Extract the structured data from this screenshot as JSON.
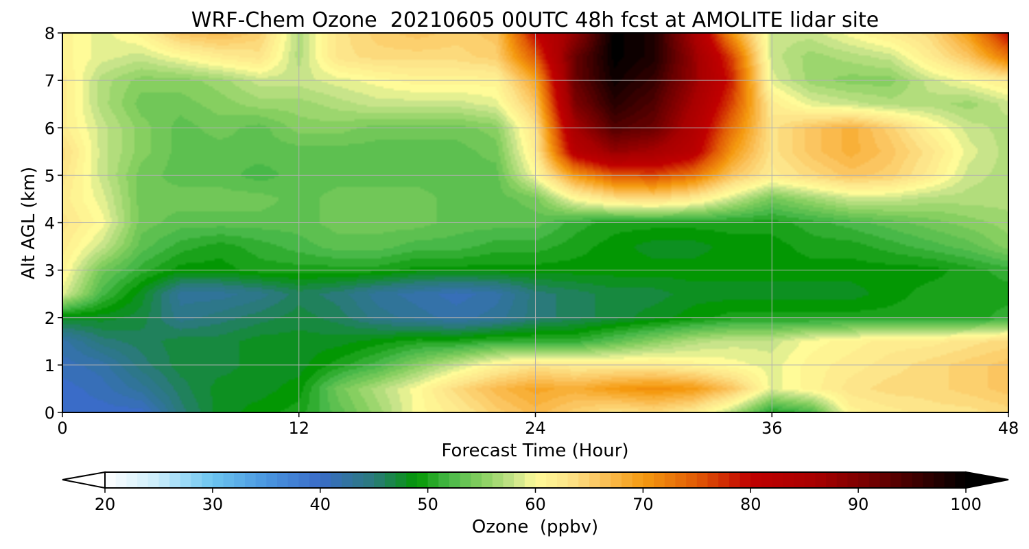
{
  "chart_data": {
    "type": "heatmap",
    "title": "WRF-Chem Ozone  20210605 00UTC 48h fcst at AMOLITE lidar site",
    "xlabel": "Forecast Time (Hour)",
    "ylabel": "Alt AGL (km)",
    "xlim": [
      0,
      48
    ],
    "ylim": [
      0,
      8
    ],
    "xticks": [
      0,
      12,
      24,
      36,
      48
    ],
    "yticks": [
      0,
      1,
      2,
      3,
      4,
      5,
      6,
      7,
      8
    ],
    "grid": true,
    "x": [
      0,
      2,
      4,
      6,
      8,
      10,
      12,
      14,
      16,
      18,
      20,
      22,
      24,
      26,
      28,
      30,
      32,
      34,
      36,
      38,
      40,
      42,
      44,
      46,
      48
    ],
    "y": [
      0,
      0.5,
      1,
      1.5,
      2,
      2.5,
      3,
      3.5,
      4,
      4.5,
      5,
      5.5,
      6,
      6.5,
      7,
      7.5,
      8
    ],
    "values": [
      [
        40,
        40,
        40,
        45,
        48,
        49,
        50,
        53,
        56,
        60,
        62,
        65,
        67,
        65,
        63,
        64,
        62,
        57,
        50,
        52,
        61,
        62,
        63,
        63,
        64
      ],
      [
        40,
        41,
        43,
        46,
        48,
        48,
        49,
        54,
        57,
        60,
        64,
        67,
        69,
        68,
        70,
        71,
        70,
        66,
        59,
        61,
        63,
        64,
        64,
        65,
        66
      ],
      [
        41,
        42,
        45,
        47,
        47,
        48,
        48,
        50,
        52,
        55,
        58,
        61,
        63,
        62,
        62,
        62,
        61,
        60,
        59,
        61,
        62,
        63,
        64,
        65,
        66
      ],
      [
        42,
        45,
        46,
        47,
        47,
        48,
        48,
        48,
        49,
        50,
        50,
        51,
        51,
        51,
        53,
        55,
        57,
        58,
        58,
        60,
        61,
        62,
        62,
        63,
        64
      ],
      [
        48,
        48,
        47,
        44,
        45,
        46,
        47,
        46,
        44,
        43,
        42,
        43,
        45,
        46,
        47,
        48,
        49,
        50,
        50,
        50,
        50,
        50,
        50,
        50,
        51
      ],
      [
        59,
        52,
        48,
        43,
        43,
        44,
        46,
        45,
        43,
        42,
        41,
        42,
        45,
        46,
        47,
        47,
        48,
        48,
        48,
        48,
        48,
        49,
        50,
        50,
        50
      ],
      [
        61,
        54,
        51,
        49,
        49,
        50,
        50,
        50,
        50,
        49,
        49,
        49,
        49,
        49,
        49,
        49,
        49,
        49,
        49,
        49,
        49,
        49,
        49,
        50,
        51
      ],
      [
        62,
        58,
        53,
        51,
        50,
        51,
        52,
        53,
        53,
        52,
        52,
        51,
        51,
        50,
        49,
        48,
        48,
        49,
        49,
        50,
        50,
        51,
        52,
        53,
        55
      ],
      [
        63,
        60,
        54,
        53,
        53,
        53,
        53,
        54,
        54,
        54,
        53,
        53,
        53,
        51,
        50,
        50,
        50,
        50,
        50,
        51,
        52,
        53,
        54,
        55,
        56
      ],
      [
        62,
        59,
        54,
        54,
        54,
        54,
        53,
        54,
        54,
        54,
        53,
        53,
        54,
        60,
        63,
        64,
        62,
        58,
        54,
        56,
        58,
        58,
        57,
        57,
        57
      ],
      [
        63,
        58,
        54,
        53,
        53,
        52,
        53,
        53,
        53,
        53,
        53,
        53,
        60,
        70,
        75,
        76,
        73,
        66,
        62,
        64,
        66,
        65,
        62,
        58,
        57
      ],
      [
        64,
        58,
        55,
        53,
        53,
        53,
        53,
        53,
        53,
        53,
        53,
        54,
        62,
        82,
        88,
        86,
        82,
        70,
        63,
        66,
        68,
        66,
        63,
        59,
        57
      ],
      [
        62,
        58,
        55,
        53,
        54,
        53,
        55,
        55,
        54,
        54,
        54,
        55,
        63,
        86,
        94,
        92,
        84,
        73,
        63,
        66,
        68,
        65,
        61,
        58,
        57
      ],
      [
        62,
        57,
        54,
        54,
        55,
        56,
        56,
        57,
        58,
        58,
        58,
        59,
        66,
        90,
        97,
        94,
        86,
        76,
        62,
        59,
        58,
        57,
        57,
        56,
        58
      ],
      [
        62,
        57,
        55,
        55,
        56,
        58,
        58,
        59,
        60,
        61,
        61,
        61,
        69,
        92,
        99,
        96,
        88,
        78,
        59,
        56,
        55,
        55,
        58,
        60,
        62
      ],
      [
        61,
        59,
        58,
        60,
        62,
        63,
        57,
        63,
        64,
        64,
        64,
        65,
        75,
        92,
        100,
        98,
        88,
        76,
        58,
        56,
        57,
        58,
        62,
        66,
        73
      ],
      [
        61,
        59,
        61,
        66,
        67,
        65,
        57,
        63,
        65,
        66,
        65,
        66,
        80,
        88,
        100,
        98,
        86,
        70,
        58,
        58,
        60,
        62,
        64,
        70,
        80
      ]
    ],
    "colorbar": {
      "label": "Ozone  (ppbv)",
      "min": 20,
      "max": 100,
      "ticks": [
        20,
        30,
        40,
        50,
        60,
        70,
        80,
        90,
        100
      ],
      "extend": "both",
      "stops": [
        {
          "v": 20,
          "c": "#ffffff"
        },
        {
          "v": 25,
          "c": "#c8ecfb"
        },
        {
          "v": 30,
          "c": "#6cc5f0"
        },
        {
          "v": 35,
          "c": "#4a96e0"
        },
        {
          "v": 40,
          "c": "#3a6cc8"
        },
        {
          "v": 45,
          "c": "#2a7a7a"
        },
        {
          "v": 49,
          "c": "#039703"
        },
        {
          "v": 52,
          "c": "#48b848"
        },
        {
          "v": 55,
          "c": "#86cf60"
        },
        {
          "v": 58,
          "c": "#c8e48a"
        },
        {
          "v": 60,
          "c": "#fffb98"
        },
        {
          "v": 63,
          "c": "#fde58a"
        },
        {
          "v": 66,
          "c": "#fbc560"
        },
        {
          "v": 70,
          "c": "#f59a10"
        },
        {
          "v": 75,
          "c": "#e15a05"
        },
        {
          "v": 80,
          "c": "#c00000"
        },
        {
          "v": 86,
          "c": "#a80000"
        },
        {
          "v": 92,
          "c": "#6a0000"
        },
        {
          "v": 100,
          "c": "#000000"
        }
      ]
    }
  }
}
